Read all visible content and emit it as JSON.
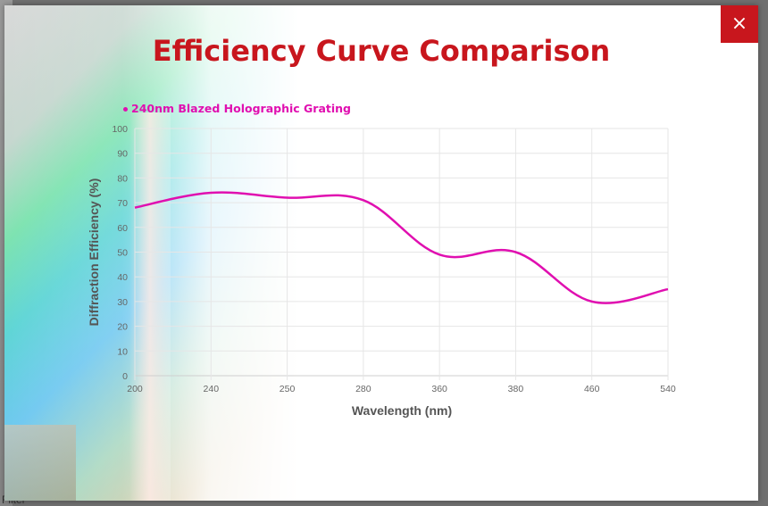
{
  "backdrop": {
    "text": "Filter"
  },
  "modal": {
    "title": "Efficiency Curve Comparison",
    "close_label": "×"
  },
  "colors": {
    "accent": "#c8161d",
    "series": "#e00fb0"
  },
  "chart_data": {
    "type": "line",
    "title": "Efficiency Curve Comparison",
    "xlabel": "Wavelength (nm)",
    "ylabel": "Diffraction Efficiency (%)",
    "ylim": [
      0,
      100
    ],
    "yticks": [
      0,
      10,
      20,
      30,
      40,
      50,
      60,
      70,
      80,
      90,
      100
    ],
    "categories": [
      "200",
      "240",
      "250",
      "280",
      "360",
      "380",
      "460",
      "540"
    ],
    "grid": true,
    "legend": "top-left",
    "series": [
      {
        "name": "240nm Blazed Holographic Grating",
        "values": [
          68,
          74,
          72,
          71,
          49,
          50,
          30,
          35
        ]
      }
    ]
  }
}
